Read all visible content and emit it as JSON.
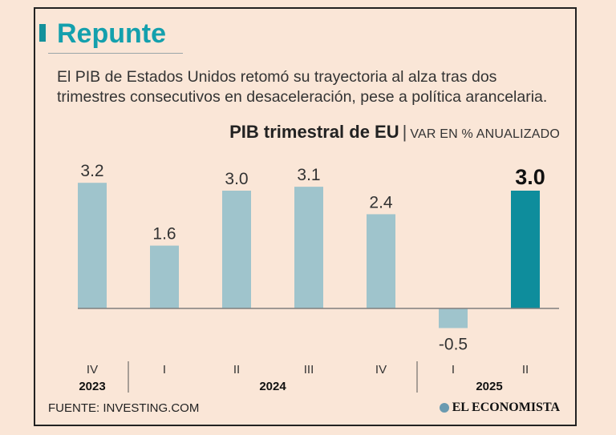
{
  "headline": "Repunte",
  "subtitle": "El PIB de Estados Unidos retomó su trayectoria al alza tras dos trimestres consecutivos en desaceleración, pese a política arancelaria.",
  "chart_title": {
    "main": "PIB trimestral de EU",
    "separator": "|",
    "unit": "VAR EN % ANUALIZADO"
  },
  "chart_data": {
    "type": "bar",
    "title": "PIB trimestral de EU",
    "ylabel": "VAR EN % ANUALIZADO",
    "categories": [
      "IV",
      "I",
      "II",
      "III",
      "IV",
      "I",
      "II"
    ],
    "values": [
      3.2,
      1.6,
      3.0,
      3.1,
      2.4,
      -0.5,
      3.0
    ],
    "value_labels": [
      "3.2",
      "1.6",
      "3.0",
      "3.1",
      "2.4",
      "-0.5",
      "3.0"
    ],
    "years": [
      {
        "label": "2023",
        "from": 0,
        "to": 0
      },
      {
        "label": "2024",
        "from": 1,
        "to": 4
      },
      {
        "label": "2025",
        "from": 5,
        "to": 6
      }
    ],
    "highlight_index": 6,
    "ylim": [
      -0.7,
      3.5
    ],
    "colors": {
      "bar": "#9fc4cc",
      "highlight": "#0e8d9c",
      "axis": "#7f7f7f"
    }
  },
  "source": "FUENTE: INVESTING.COM",
  "logo": "EL ECONOMISTA"
}
